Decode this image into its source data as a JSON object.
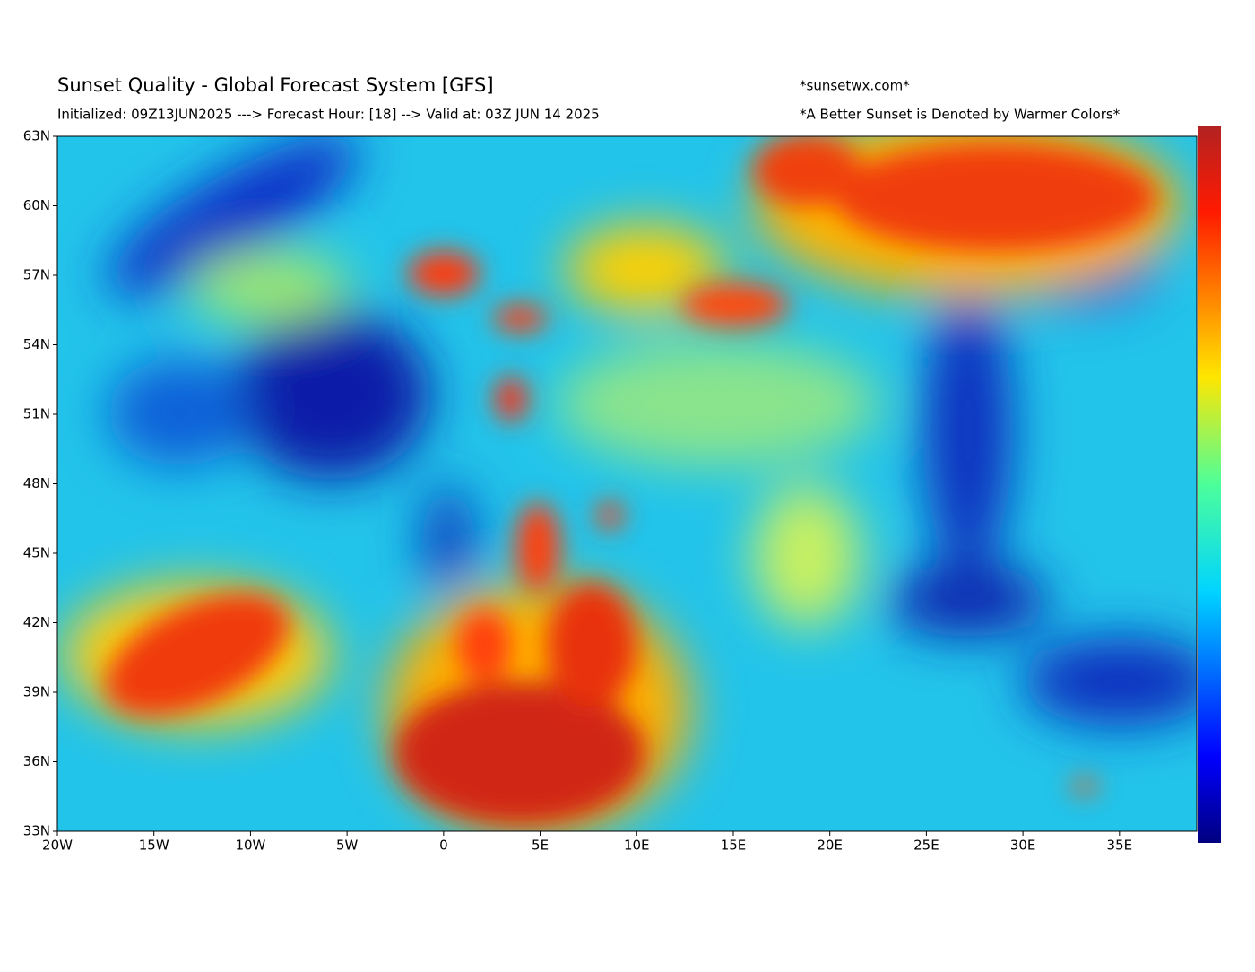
{
  "header": {
    "title": "Sunset Quality - Global Forecast System [GFS]",
    "subtitle": "Initialized: 09Z13JUN2025 ---> Forecast Hour: [18] --> Valid at: 03Z  JUN 14 2025",
    "source": "*sunsetwx.com*",
    "note": "*A Better Sunset is Denoted by Warmer Colors*"
  },
  "map": {
    "xlim": [
      -20,
      39
    ],
    "ylim": [
      33,
      63
    ],
    "xticks": [
      {
        "value": -20,
        "label": "20W"
      },
      {
        "value": -15,
        "label": "15W"
      },
      {
        "value": -10,
        "label": "10W"
      },
      {
        "value": -5,
        "label": "5W"
      },
      0,
      {
        "value": 5,
        "label": "5E"
      },
      {
        "value": 10,
        "label": "10E"
      },
      {
        "value": 15,
        "label": "15E"
      },
      {
        "value": 20,
        "label": "20E"
      },
      {
        "value": 25,
        "label": "25E"
      },
      {
        "value": 30,
        "label": "30E"
      },
      {
        "value": 35,
        "label": "35E"
      }
    ],
    "yticks": [
      {
        "value": 33,
        "label": "33N"
      },
      {
        "value": 36,
        "label": "36N"
      },
      {
        "value": 39,
        "label": "39N"
      },
      {
        "value": 42,
        "label": "42N"
      },
      {
        "value": 45,
        "label": "45N"
      },
      {
        "value": 48,
        "label": "48N"
      },
      {
        "value": 51,
        "label": "51N"
      },
      {
        "value": 54,
        "label": "54N"
      },
      {
        "value": 57,
        "label": "57N"
      },
      {
        "value": 60,
        "label": "60N"
      },
      {
        "value": 63,
        "label": "63N"
      }
    ]
  }
}
